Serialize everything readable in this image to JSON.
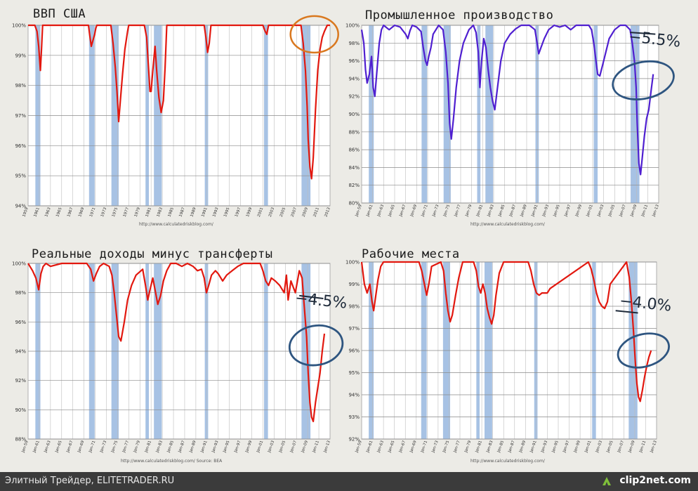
{
  "footer": {
    "left_text": "Элитный Трейдер, ELITETRADER.RU",
    "logo_text": "clip2net.com"
  },
  "colors": {
    "recession": "#a7c2e4",
    "grid": "#9a9a9a",
    "red_line": "#e2180f",
    "purple_line": "#4f1fd0",
    "circle_orange": "#d9781f",
    "circle_blue": "#2e5580"
  },
  "chart_data": [
    {
      "id": "gdp",
      "type": "line",
      "title": "ВВП США",
      "ylabel_ticks": [
        "100%",
        "99%",
        "98%",
        "97%",
        "96%",
        "95%",
        "94%"
      ],
      "ylim": [
        94,
        100
      ],
      "xlim": [
        1959,
        2013
      ],
      "x_ticks": [
        "1959",
        "1961",
        "1963",
        "1965",
        "1967",
        "1969",
        "1971",
        "1973",
        "1975",
        "1977",
        "1979",
        "1981",
        "1983",
        "1985",
        "1987",
        "1989",
        "1991",
        "1993",
        "1995",
        "1997",
        "1999",
        "2001",
        "2003",
        "2005",
        "2007",
        "2009",
        "2011",
        "2013"
      ],
      "recessions": [
        [
          1960.3,
          1961.2
        ],
        [
          1969.9,
          1970.9
        ],
        [
          1973.9,
          1975.2
        ],
        [
          1980.0,
          1980.6
        ],
        [
          1981.5,
          1982.9
        ],
        [
          1990.6,
          1991.2
        ],
        [
          2001.2,
          2001.9
        ],
        [
          2007.9,
          2009.5
        ]
      ],
      "series": [
        {
          "color": "#e2180f",
          "x": [
            1959,
            1960.2,
            1960.6,
            1960.9,
            1961.2,
            1961.4,
            1961.6,
            1969.8,
            1970.0,
            1970.3,
            1970.6,
            1970.9,
            1971.1,
            1971.3,
            1973.8,
            1974.2,
            1974.6,
            1974.9,
            1975.2,
            1975.5,
            1975.9,
            1976.3,
            1976.8,
            1977.0,
            1979.8,
            1980.2,
            1980.5,
            1980.8,
            1981.0,
            1981.3,
            1981.7,
            1982.0,
            1982.4,
            1982.8,
            1983.2,
            1983.5,
            1983.8,
            1990.5,
            1990.8,
            1991.1,
            1991.4,
            1991.7,
            2001.0,
            2001.4,
            2001.7,
            2002.0,
            2007.8,
            2008.2,
            2008.6,
            2008.9,
            2009.1,
            2009.4,
            2009.7,
            2010.0,
            2010.4,
            2010.8,
            2011.2,
            2011.6,
            2012.0,
            2012.5,
            2013
          ],
          "y": [
            100,
            100,
            99.8,
            99.3,
            98.5,
            99.2,
            100,
            100,
            99.7,
            99.3,
            99.5,
            99.7,
            99.9,
            100,
            100,
            99.4,
            98.6,
            97.8,
            96.8,
            97.5,
            98.4,
            99.2,
            99.8,
            100,
            100,
            99.6,
            98.7,
            97.8,
            97.8,
            98.5,
            99.3,
            98.5,
            97.6,
            97.1,
            97.5,
            98.6,
            100,
            100,
            99.6,
            99.1,
            99.4,
            100,
            100,
            99.8,
            99.7,
            100,
            100,
            99.4,
            98.5,
            97.3,
            96.2,
            95.3,
            94.9,
            95.6,
            97.2,
            98.5,
            99.2,
            99.6,
            99.8,
            100,
            100
          ]
        }
      ]
    },
    {
      "id": "industrial",
      "type": "line",
      "title": "Промышленное производство",
      "ylabel_ticks": [
        "100%",
        "98%",
        "96%",
        "94%",
        "92%",
        "90%",
        "88%",
        "86%",
        "84%",
        "82%",
        "80%"
      ],
      "ylim": [
        80,
        100
      ],
      "xlim": [
        1959,
        2013
      ],
      "x_ticks": [
        "Jan-59",
        "Jan-61",
        "Jan-63",
        "Jan-65",
        "Jan-67",
        "Jan-69",
        "Jan-71",
        "Jan-73",
        "Jan-75",
        "Jan-77",
        "Jan-79",
        "Jan-81",
        "Jan-83",
        "Jan-85",
        "Jan-87",
        "Jan-89",
        "Jan-91",
        "Jan-93",
        "Jan-95",
        "Jan-97",
        "Jan-99",
        "Jan-01",
        "Jan-03",
        "Jan-05",
        "Jan-07",
        "Jan-09",
        "Jan-11",
        "Jan-13"
      ],
      "recessions": [
        [
          1960.3,
          1961.2
        ],
        [
          1969.9,
          1970.9
        ],
        [
          1973.9,
          1975.2
        ],
        [
          1980.0,
          1980.6
        ],
        [
          1981.5,
          1982.9
        ],
        [
          1990.6,
          1991.2
        ],
        [
          2001.2,
          2001.9
        ],
        [
          2007.9,
          2009.5
        ]
      ],
      "series": [
        {
          "color": "#4f1fd0",
          "x": [
            1959,
            1959.4,
            1959.7,
            1960.0,
            1960.4,
            1960.8,
            1961.1,
            1961.4,
            1961.8,
            1962.2,
            1962.6,
            1963.0,
            1964,
            1965,
            1966,
            1967.0,
            1967.4,
            1967.8,
            1968.2,
            1969.0,
            1969.8,
            1970.2,
            1970.6,
            1970.9,
            1971.2,
            1971.6,
            1972.0,
            1973.0,
            1973.8,
            1974.3,
            1974.7,
            1975.0,
            1975.3,
            1975.7,
            1976.2,
            1976.8,
            1977.5,
            1978.5,
            1979.3,
            1979.8,
            1980.2,
            1980.5,
            1980.8,
            1981.2,
            1981.6,
            1982.0,
            1982.4,
            1982.8,
            1983.2,
            1983.7,
            1984.3,
            1985,
            1986,
            1987,
            1988,
            1989.5,
            1990.5,
            1990.9,
            1991.2,
            1991.6,
            1992.2,
            1993,
            1994,
            1995,
            1996,
            1997,
            1998,
            1999,
            2000.3,
            2000.8,
            2001.2,
            2001.6,
            2001.9,
            2002.3,
            2002.8,
            2003.4,
            2004,
            2005,
            2006,
            2007,
            2007.8,
            2008.2,
            2008.6,
            2008.9,
            2009.1,
            2009.4,
            2009.7,
            2010.0,
            2010.4,
            2010.8,
            2011.2,
            2011.6,
            2012.0
          ],
          "y": [
            99.5,
            98,
            95,
            93.5,
            94.5,
            96.5,
            93,
            92,
            95,
            98,
            99.5,
            100,
            99.5,
            100,
            99.8,
            99,
            98.5,
            99.4,
            100,
            99.8,
            99.3,
            97.5,
            96,
            95.5,
            96.5,
            97.5,
            99,
            100,
            99.5,
            97,
            93.5,
            89,
            87.2,
            89.5,
            93,
            96,
            98,
            99.5,
            100,
            99.2,
            97,
            93,
            96,
            98.5,
            97.5,
            95,
            93,
            91.5,
            90.5,
            93,
            96,
            98,
            99,
            99.6,
            100,
            100,
            99.5,
            98,
            96.8,
            97.5,
            98.5,
            99.5,
            100,
            99.8,
            100,
            99.5,
            100,
            100,
            100,
            99.5,
            98,
            96,
            94.5,
            94.3,
            95.5,
            97,
            98.5,
            99.5,
            100,
            100,
            99.5,
            98,
            96,
            93,
            89,
            84.5,
            83.2,
            85,
            87.5,
            89.5,
            90.5,
            92.5,
            94.5
          ]
        }
      ]
    },
    {
      "id": "income",
      "type": "line",
      "title": "Реальные доходы минус трансферты",
      "ylabel_ticks": [
        "100%",
        "98%",
        "96%",
        "94%",
        "92%",
        "90%",
        "88%"
      ],
      "ylim": [
        88,
        100
      ],
      "xlim": [
        1959,
        2013
      ],
      "x_ticks": [
        "Jan-59",
        "Jan-61",
        "Jan-63",
        "Jan-65",
        "Jan-67",
        "Jan-69",
        "Jan-71",
        "Jan-73",
        "Jan-75",
        "Jan-77",
        "Jan-79",
        "Jan-81",
        "Jan-83",
        "Jan-85",
        "Jan-87",
        "Jan-89",
        "Jan-91",
        "Jan-93",
        "Jan-95",
        "Jan-97",
        "Jan-99",
        "Jan-01",
        "Jan-03",
        "Jan-05",
        "Jan-07",
        "Jan-09",
        "Jan-11",
        "Jan-13"
      ],
      "recessions": [
        [
          1960.3,
          1961.2
        ],
        [
          1969.9,
          1970.9
        ],
        [
          1973.9,
          1975.2
        ],
        [
          1980.0,
          1980.6
        ],
        [
          1981.5,
          1982.9
        ],
        [
          1990.6,
          1991.2
        ],
        [
          2001.2,
          2001.9
        ],
        [
          2007.9,
          2009.5
        ]
      ],
      "series": [
        {
          "color": "#e2180f",
          "x": [
            1959,
            1959.8,
            1960.4,
            1960.9,
            1961.3,
            1961.7,
            1962.2,
            1963,
            1965,
            1967,
            1969.5,
            1970.2,
            1970.7,
            1971.2,
            1971.8,
            1972.5,
            1973.5,
            1974.0,
            1974.4,
            1974.8,
            1975.2,
            1975.6,
            1976.2,
            1976.8,
            1977.5,
            1978.3,
            1979.5,
            1980.0,
            1980.4,
            1980.8,
            1981.3,
            1981.8,
            1982.2,
            1982.7,
            1983.2,
            1983.8,
            1984.5,
            1985.5,
            1986.5,
            1987.5,
            1988.5,
            1989.3,
            1990.0,
            1990.5,
            1990.9,
            1991.3,
            1991.8,
            1992.5,
            1993,
            1993.8,
            1994.5,
            1995.5,
            1996.5,
            1997.5,
            1998.5,
            1999.5,
            2000.5,
            2001.0,
            2001.5,
            2002.0,
            2002.5,
            2003.2,
            2004,
            2004.8,
            2005.2,
            2005.5,
            2006,
            2006.8,
            2007.5,
            2008.0,
            2008.4,
            2008.8,
            2009.1,
            2009.4,
            2009.7,
            2010.0,
            2010.4,
            2010.8,
            2011.2,
            2011.6,
            2012.0
          ],
          "y": [
            100,
            99.5,
            99,
            98.2,
            99.3,
            99.8,
            100,
            99.8,
            100,
            100,
            100,
            99.6,
            98.8,
            99.3,
            99.8,
            100,
            99.8,
            99.2,
            98,
            96.5,
            95,
            94.7,
            96,
            97.5,
            98.5,
            99.2,
            99.6,
            98.5,
            97.5,
            98.2,
            99,
            98,
            97.2,
            97.8,
            98.8,
            99.5,
            100,
            100,
            99.8,
            100,
            99.8,
            99.5,
            99.6,
            99,
            98,
            98.5,
            99.2,
            99.5,
            99.3,
            98.8,
            99.2,
            99.5,
            99.8,
            100,
            100,
            100,
            100,
            99.5,
            98.8,
            98.5,
            99,
            98.8,
            98.5,
            98,
            99.2,
            97.5,
            98.8,
            98,
            99.5,
            99,
            97,
            95,
            92.5,
            90.5,
            89.5,
            89.2,
            90.5,
            91.5,
            92.5,
            94,
            95.2
          ]
        }
      ]
    },
    {
      "id": "jobs",
      "type": "line",
      "title": "Рабочие места",
      "ylabel_ticks": [
        "100%",
        "99%",
        "98%",
        "97%",
        "96%",
        "95%",
        "94%",
        "93%",
        "92%"
      ],
      "ylim": [
        92,
        100
      ],
      "xlim": [
        1959,
        2013
      ],
      "x_ticks": [
        "Jan-59",
        "Jan-61",
        "Jan-63",
        "Jan-65",
        "Jan-67",
        "Jan-69",
        "Jan-71",
        "Jan-73",
        "Jan-75",
        "Jan-77",
        "Jan-79",
        "Jan-81",
        "Jan-83",
        "Jan-85",
        "Jan-87",
        "Jan-89",
        "Jan-91",
        "Jan-93",
        "Jan-95",
        "Jan-97",
        "Jan-99",
        "Jan-01",
        "Jan-03",
        "Jan-05",
        "Jan-07",
        "Jan-09",
        "Jan-11",
        "Jan-13"
      ],
      "recessions": [
        [
          1960.3,
          1961.2
        ],
        [
          1969.9,
          1970.9
        ],
        [
          1973.9,
          1975.2
        ],
        [
          1980.0,
          1980.6
        ],
        [
          1981.5,
          1982.9
        ],
        [
          1990.6,
          1991.2
        ],
        [
          2001.2,
          2001.9
        ],
        [
          2007.9,
          2009.5
        ]
      ],
      "series": [
        {
          "color": "#e2180f",
          "x": [
            1959,
            1959.5,
            1960.0,
            1960.5,
            1960.9,
            1961.2,
            1961.6,
            1962.0,
            1962.5,
            1963,
            1969.5,
            1970.0,
            1970.5,
            1970.9,
            1971.3,
            1971.8,
            1973.5,
            1974.0,
            1974.4,
            1974.8,
            1975.2,
            1975.6,
            1976.2,
            1976.8,
            1977.5,
            1979.5,
            1980.0,
            1980.4,
            1980.8,
            1981.2,
            1981.6,
            1982.0,
            1982.4,
            1982.8,
            1983.2,
            1983.6,
            1984.2,
            1985,
            1989.5,
            1990.0,
            1990.5,
            1991.0,
            1991.5,
            1992.0,
            1992.5,
            1993.0,
            1993.5,
            2000.5,
            2001.0,
            2001.5,
            2002.0,
            2002.5,
            2003.0,
            2003.5,
            2004.0,
            2004.5,
            2007.5,
            2008.0,
            2008.4,
            2008.8,
            2009.1,
            2009.4,
            2009.7,
            2010.0,
            2010.4,
            2010.8,
            2011.2,
            2011.6,
            2012.0
          ],
          "y": [
            100,
            99,
            98.6,
            99,
            98.2,
            97.8,
            98.5,
            99.2,
            99.8,
            100,
            100,
            99.6,
            99.0,
            98.5,
            99.0,
            99.8,
            100,
            99.6,
            98.6,
            97.8,
            97.3,
            97.6,
            98.5,
            99.3,
            100,
            100,
            99.6,
            98.9,
            98.6,
            99.0,
            98.6,
            97.9,
            97.5,
            97.2,
            97.6,
            98.5,
            99.5,
            100,
            100,
            99.6,
            99.0,
            98.6,
            98.5,
            98.6,
            98.6,
            98.6,
            98.8,
            100,
            99.7,
            99.2,
            98.6,
            98.2,
            98.0,
            97.9,
            98.2,
            99.0,
            100,
            99.3,
            98.2,
            96.8,
            95.5,
            94.5,
            93.9,
            93.7,
            94.2,
            94.8,
            95.3,
            95.7,
            96.0
          ]
        }
      ]
    }
  ],
  "panels": {
    "gdp": {
      "source": "http://www.calculatedriskblog.com/"
    },
    "industrial": {
      "source": "http://www.calculatedriskblog.com/",
      "note": "−5.5%"
    },
    "income": {
      "source": "http://www.calculatedriskblog.com/   Source: BEA",
      "note": "−4.5%"
    },
    "jobs": {
      "source": "http://www.calculatedriskblog.com/",
      "note": "−4.0%"
    }
  }
}
